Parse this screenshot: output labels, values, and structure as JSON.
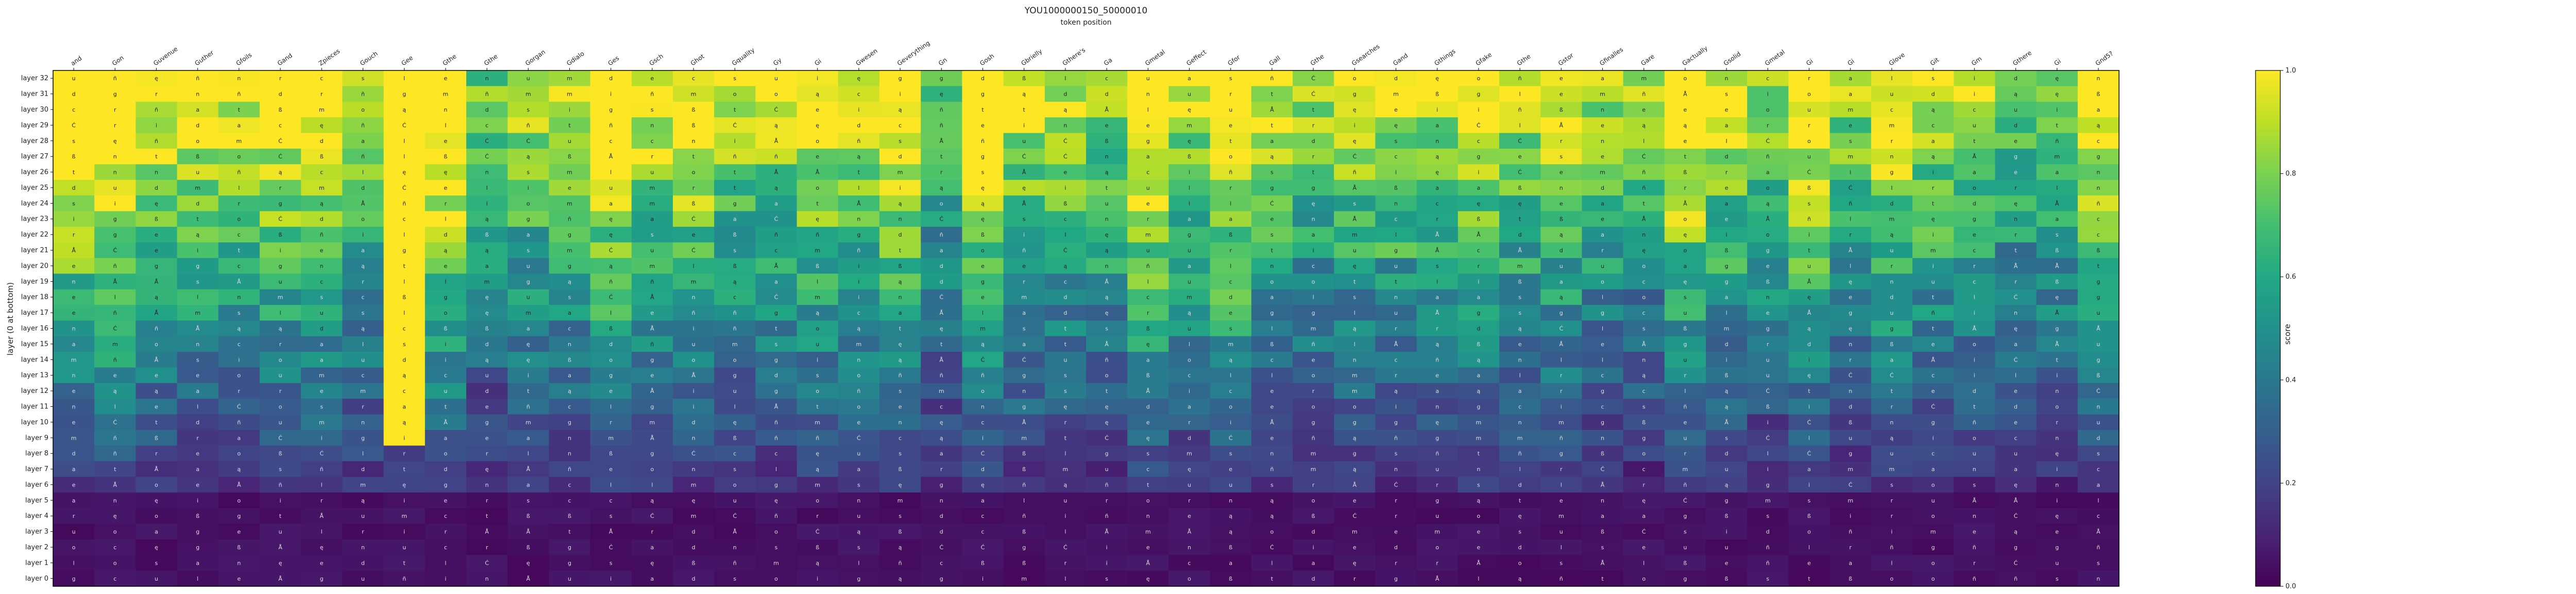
{
  "chart_data": {
    "type": "heatmap",
    "title": "YOU1000000150_50000010",
    "subtitle": "token position",
    "xlabel": "",
    "ylabel": "layer (0 at bottom)",
    "colorbar_label": "score",
    "colorbar_ticks": [
      "0.0",
      "0.2",
      "0.4",
      "0.6",
      "0.8",
      "1.0"
    ],
    "colormap": "viridis",
    "zlim": [
      0,
      1
    ],
    "x_tokens": [
      "and",
      "Gon",
      "Guvenue",
      "Guther",
      "Gfoils",
      "Gand",
      "Zpieces",
      "Gouch",
      "Gee",
      "Gthe",
      "Gthe",
      "Gorgan",
      "Gdialo",
      "Ges",
      "Gsch",
      "Ghot",
      "Gquality",
      "Gy",
      "Gi",
      "Gwesen",
      "Geverything",
      "Gn",
      "Gosh",
      "Gbrielly",
      "Gthere's",
      "Ga",
      "Gmetal",
      "Geffect",
      "Gfor",
      "Gall",
      "Gthe",
      "Gsearches",
      "Gand",
      "Gthings",
      "Gfake",
      "Gthe",
      "Gstor",
      "Gfinalles",
      "Gare",
      "Gactually",
      "Gsolid",
      "Gmetal",
      "Gi",
      "Gi",
      "Glove",
      "Git",
      "Gm",
      "Gthere",
      "Gi",
      "Gnd5?"
    ],
    "y_labels": [
      "layer 32",
      "layer 31",
      "layer 30",
      "layer 29",
      "layer 28",
      "layer 27",
      "layer 26",
      "layer 25",
      "layer 24",
      "layer 23",
      "layer 22",
      "layer 21",
      "layer 20",
      "layer 19",
      "layer 18",
      "layer 17",
      "layer 16",
      "layer 15",
      "layer 14",
      "layer 13",
      "layer 12",
      "layer 11",
      "layer 10",
      "layer 9",
      "layer 8",
      "layer 7",
      "layer 6",
      "layer 5",
      "layer 4",
      "layer 3",
      "layer 2",
      "layer 1",
      "layer 0"
    ],
    "cell_annotations": [
      "a",
      "s",
      "o",
      "e",
      "t",
      "n",
      "i",
      "r",
      "d",
      "l",
      "m",
      "u",
      "c",
      "g",
      "ß",
      "ą",
      "ę",
      "Å",
      "ñ",
      "Ć"
    ],
    "grid": false
  },
  "colors": {
    "viridis_low": "#440154",
    "viridis_mid": "#21918c",
    "viridis_high": "#fde725"
  }
}
